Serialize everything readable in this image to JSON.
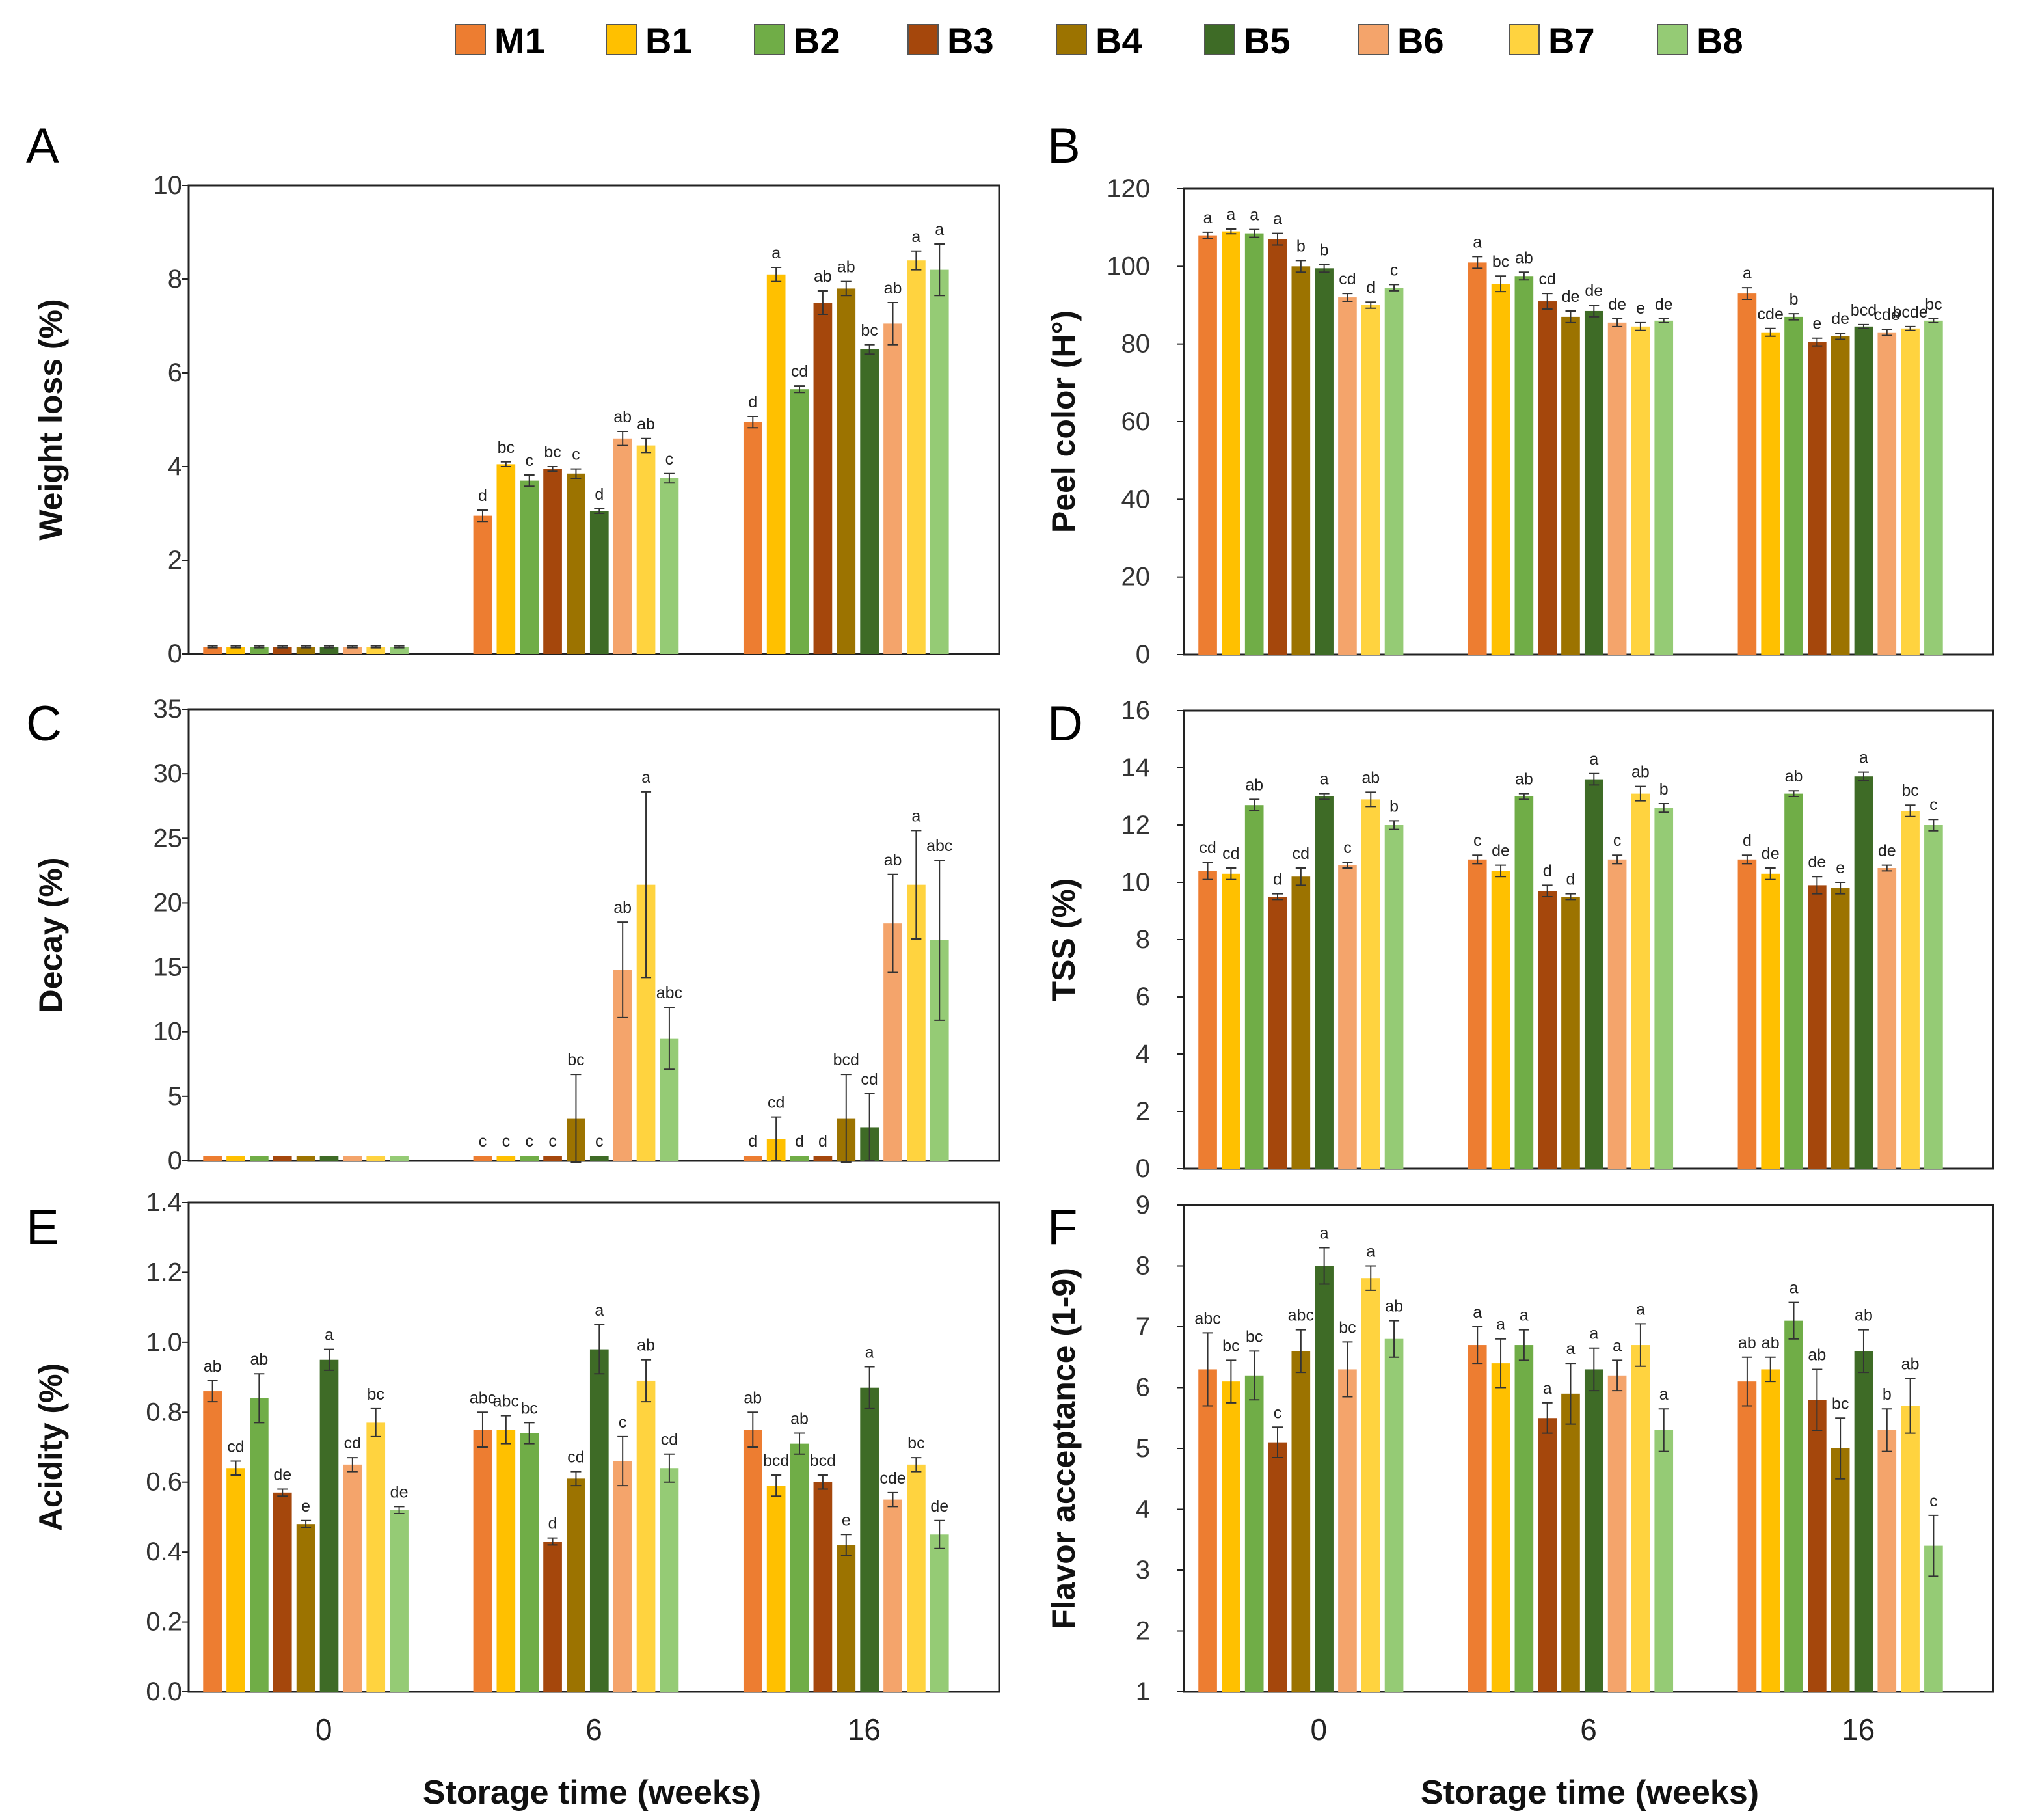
{
  "legend": {
    "position": "top",
    "items": [
      {
        "name": "M1",
        "color": "#ED7D31"
      },
      {
        "name": "B1",
        "color": "#FFC000"
      },
      {
        "name": "B2",
        "color": "#70AD47"
      },
      {
        "name": "B3",
        "color": "#A5470C"
      },
      {
        "name": "B4",
        "color": "#9C7300"
      },
      {
        "name": "B5",
        "color": "#3E6B26"
      },
      {
        "name": "B6",
        "color": "#F4A46B"
      },
      {
        "name": "B7",
        "color": "#FFD33F"
      },
      {
        "name": "B8",
        "color": "#95CB75"
      }
    ]
  },
  "xlabel_bottom": "Storage time (weeks)",
  "chart_data": [
    {
      "panel": "A",
      "type": "bar",
      "ylabel": "Weight loss (%)",
      "ylim": [
        0,
        10
      ],
      "yticks": [
        "0",
        "2",
        "4",
        "6",
        "8",
        "10"
      ],
      "categories": [
        "",
        "",
        ""
      ],
      "grid": false,
      "series": [
        {
          "name": "M1",
          "values": [
            0.15,
            2.95,
            4.95
          ],
          "errors": [
            0.02,
            0.12,
            0.12
          ],
          "letters": [
            "",
            "d",
            "d"
          ]
        },
        {
          "name": "B1",
          "values": [
            0.15,
            4.05,
            8.1
          ],
          "errors": [
            0.02,
            0.05,
            0.15
          ],
          "letters": [
            "",
            "bc",
            "a"
          ]
        },
        {
          "name": "B2",
          "values": [
            0.15,
            3.7,
            5.65
          ],
          "errors": [
            0.02,
            0.12,
            0.07
          ],
          "letters": [
            "",
            "c",
            "cd"
          ]
        },
        {
          "name": "B3",
          "values": [
            0.15,
            3.95,
            7.5
          ],
          "errors": [
            0.02,
            0.05,
            0.25
          ],
          "letters": [
            "",
            "bc",
            "ab"
          ]
        },
        {
          "name": "B4",
          "values": [
            0.15,
            3.85,
            7.8
          ],
          "errors": [
            0.02,
            0.1,
            0.15
          ],
          "letters": [
            "",
            "c",
            "ab"
          ]
        },
        {
          "name": "B5",
          "values": [
            0.15,
            3.05,
            6.5
          ],
          "errors": [
            0.02,
            0.05,
            0.1
          ],
          "letters": [
            "",
            "d",
            "bc"
          ]
        },
        {
          "name": "B6",
          "values": [
            0.15,
            4.6,
            7.05
          ],
          "errors": [
            0.02,
            0.15,
            0.45
          ],
          "letters": [
            "",
            "ab",
            "ab"
          ]
        },
        {
          "name": "B7",
          "values": [
            0.15,
            4.45,
            8.4
          ],
          "errors": [
            0.02,
            0.15,
            0.2
          ],
          "letters": [
            "",
            "ab",
            "a"
          ]
        },
        {
          "name": "B8",
          "values": [
            0.15,
            3.75,
            8.2
          ],
          "errors": [
            0.02,
            0.1,
            0.55
          ],
          "letters": [
            "",
            "c",
            "a"
          ]
        }
      ]
    },
    {
      "panel": "B",
      "type": "bar",
      "ylabel": "Peel color (H°)",
      "ylim": [
        0,
        120
      ],
      "yticks": [
        "0",
        "20",
        "40",
        "60",
        "80",
        "100",
        "120"
      ],
      "categories": [
        "",
        "",
        ""
      ],
      "grid": false,
      "series": [
        {
          "name": "M1",
          "values": [
            108,
            101,
            93
          ],
          "errors": [
            0.8,
            1.5,
            1.5
          ],
          "letters": [
            "a",
            "a",
            "a"
          ]
        },
        {
          "name": "B1",
          "values": [
            109,
            95.5,
            83
          ],
          "errors": [
            0.6,
            2.0,
            1.0
          ],
          "letters": [
            "a",
            "bc",
            "cde"
          ]
        },
        {
          "name": "B2",
          "values": [
            108.5,
            97.5,
            87
          ],
          "errors": [
            1.0,
            1.0,
            0.8
          ],
          "letters": [
            "a",
            "ab",
            "b"
          ]
        },
        {
          "name": "B3",
          "values": [
            107,
            91,
            80.5
          ],
          "errors": [
            1.5,
            2.0,
            1.0
          ],
          "letters": [
            "a",
            "cd",
            "e"
          ]
        },
        {
          "name": "B4",
          "values": [
            100,
            87,
            82
          ],
          "errors": [
            1.5,
            1.5,
            0.8
          ],
          "letters": [
            "b",
            "de",
            "de"
          ]
        },
        {
          "name": "B5",
          "values": [
            99.5,
            88.5,
            84.5
          ],
          "errors": [
            1.0,
            1.5,
            0.5
          ],
          "letters": [
            "b",
            "de",
            "bcd"
          ]
        },
        {
          "name": "B6",
          "values": [
            92,
            85.5,
            83
          ],
          "errors": [
            1.0,
            1.0,
            0.8
          ],
          "letters": [
            "cd",
            "de",
            "cde"
          ]
        },
        {
          "name": "B7",
          "values": [
            90,
            84.5,
            84
          ],
          "errors": [
            0.8,
            1.0,
            0.5
          ],
          "letters": [
            "d",
            "e",
            "bcde"
          ]
        },
        {
          "name": "B8",
          "values": [
            94.5,
            86,
            86
          ],
          "errors": [
            0.8,
            0.5,
            0.5
          ],
          "letters": [
            "c",
            "de",
            "bc"
          ]
        }
      ]
    },
    {
      "panel": "C",
      "type": "bar",
      "ylabel": "Decay (%)",
      "ylim": [
        0,
        35
      ],
      "yticks": [
        "0",
        "5",
        "10",
        "15",
        "20",
        "25",
        "30",
        "35"
      ],
      "categories": [
        "",
        "",
        ""
      ],
      "grid": false,
      "series": [
        {
          "name": "M1",
          "values": [
            0.4,
            0.4,
            0.4
          ],
          "errors": [
            0,
            0,
            0
          ],
          "letters": [
            "",
            "c",
            "d"
          ]
        },
        {
          "name": "B1",
          "values": [
            0.4,
            0.4,
            1.7
          ],
          "errors": [
            0,
            0,
            1.7
          ],
          "letters": [
            "",
            "c",
            "cd"
          ]
        },
        {
          "name": "B2",
          "values": [
            0.4,
            0.4,
            0.4
          ],
          "errors": [
            0,
            0,
            0
          ],
          "letters": [
            "",
            "c",
            "d"
          ]
        },
        {
          "name": "B3",
          "values": [
            0.4,
            0.4,
            0.4
          ],
          "errors": [
            0,
            0,
            0
          ],
          "letters": [
            "",
            "c",
            "d"
          ]
        },
        {
          "name": "B4",
          "values": [
            0.4,
            3.3,
            3.3
          ],
          "errors": [
            0,
            3.4,
            3.4
          ],
          "letters": [
            "",
            "bc",
            "bcd"
          ]
        },
        {
          "name": "B5",
          "values": [
            0.4,
            0.4,
            2.6
          ],
          "errors": [
            0,
            0,
            2.6
          ],
          "letters": [
            "",
            "c",
            "cd"
          ]
        },
        {
          "name": "B6",
          "values": [
            0.4,
            14.8,
            18.4
          ],
          "errors": [
            0,
            3.7,
            3.8
          ],
          "letters": [
            "",
            "ab",
            "ab"
          ]
        },
        {
          "name": "B7",
          "values": [
            0.4,
            21.4,
            21.4
          ],
          "errors": [
            0,
            7.2,
            4.2
          ],
          "letters": [
            "",
            "a",
            "a"
          ]
        },
        {
          "name": "B8",
          "values": [
            0.4,
            9.5,
            17.1
          ],
          "errors": [
            0,
            2.4,
            6.2
          ],
          "letters": [
            "",
            "abc",
            "abc"
          ]
        }
      ]
    },
    {
      "panel": "D",
      "type": "bar",
      "ylabel": "TSS (%)",
      "ylim": [
        0,
        16
      ],
      "yticks": [
        "0",
        "2",
        "4",
        "6",
        "8",
        "10",
        "12",
        "14",
        "16"
      ],
      "categories": [
        "",
        "",
        ""
      ],
      "grid": false,
      "series": [
        {
          "name": "M1",
          "values": [
            10.4,
            10.8,
            10.8
          ],
          "errors": [
            0.3,
            0.15,
            0.15
          ],
          "letters": [
            "cd",
            "c",
            "d"
          ]
        },
        {
          "name": "B1",
          "values": [
            10.3,
            10.4,
            10.3
          ],
          "errors": [
            0.2,
            0.2,
            0.2
          ],
          "letters": [
            "cd",
            "de",
            "de"
          ]
        },
        {
          "name": "B2",
          "values": [
            12.7,
            13.0,
            13.1
          ],
          "errors": [
            0.2,
            0.1,
            0.1
          ],
          "letters": [
            "ab",
            "ab",
            "ab"
          ]
        },
        {
          "name": "B3",
          "values": [
            9.5,
            9.7,
            9.9
          ],
          "errors": [
            0.1,
            0.2,
            0.3
          ],
          "letters": [
            "d",
            "d",
            "de"
          ]
        },
        {
          "name": "B4",
          "values": [
            10.2,
            9.5,
            9.8
          ],
          "errors": [
            0.3,
            0.1,
            0.2
          ],
          "letters": [
            "cd",
            "d",
            "e"
          ]
        },
        {
          "name": "B5",
          "values": [
            13.0,
            13.6,
            13.7
          ],
          "errors": [
            0.1,
            0.2,
            0.15
          ],
          "letters": [
            "a",
            "a",
            "a"
          ]
        },
        {
          "name": "B6",
          "values": [
            10.6,
            10.8,
            10.5
          ],
          "errors": [
            0.1,
            0.15,
            0.1
          ],
          "letters": [
            "c",
            "c",
            "de"
          ]
        },
        {
          "name": "B7",
          "values": [
            12.9,
            13.1,
            12.5
          ],
          "errors": [
            0.25,
            0.25,
            0.2
          ],
          "letters": [
            "ab",
            "ab",
            "bc"
          ]
        },
        {
          "name": "B8",
          "values": [
            12.0,
            12.6,
            12.0
          ],
          "errors": [
            0.15,
            0.15,
            0.2
          ],
          "letters": [
            "b",
            "b",
            "c"
          ]
        }
      ]
    },
    {
      "panel": "E",
      "type": "bar",
      "ylabel": "Acidity (%)",
      "ylim": [
        0,
        1.4
      ],
      "yticks": [
        "0.0",
        "0.2",
        "0.4",
        "0.6",
        "0.8",
        "1.0",
        "1.2",
        "1.4"
      ],
      "categories": [
        "0",
        "6",
        "16"
      ],
      "xlabel": "Storage time (weeks)",
      "grid": false,
      "series": [
        {
          "name": "M1",
          "values": [
            0.86,
            0.75,
            0.75
          ],
          "errors": [
            0.03,
            0.05,
            0.05
          ],
          "letters": [
            "ab",
            "abc",
            "ab"
          ]
        },
        {
          "name": "B1",
          "values": [
            0.64,
            0.75,
            0.59
          ],
          "errors": [
            0.02,
            0.04,
            0.03
          ],
          "letters": [
            "cd",
            "abc",
            "bcd"
          ]
        },
        {
          "name": "B2",
          "values": [
            0.84,
            0.74,
            0.71
          ],
          "errors": [
            0.07,
            0.03,
            0.03
          ],
          "letters": [
            "ab",
            "bc",
            "ab"
          ]
        },
        {
          "name": "B3",
          "values": [
            0.57,
            0.43,
            0.6
          ],
          "errors": [
            0.01,
            0.01,
            0.02
          ],
          "letters": [
            "de",
            "d",
            "bcd"
          ]
        },
        {
          "name": "B4",
          "values": [
            0.48,
            0.61,
            0.42
          ],
          "errors": [
            0.01,
            0.02,
            0.03
          ],
          "letters": [
            "e",
            "cd",
            "e"
          ]
        },
        {
          "name": "B5",
          "values": [
            0.95,
            0.98,
            0.87
          ],
          "errors": [
            0.03,
            0.07,
            0.06
          ],
          "letters": [
            "a",
            "a",
            "a"
          ]
        },
        {
          "name": "B6",
          "values": [
            0.65,
            0.66,
            0.55
          ],
          "errors": [
            0.02,
            0.07,
            0.02
          ],
          "letters": [
            "cd",
            "c",
            "cde"
          ]
        },
        {
          "name": "B7",
          "values": [
            0.77,
            0.89,
            0.65
          ],
          "errors": [
            0.04,
            0.06,
            0.02
          ],
          "letters": [
            "bc",
            "ab",
            "bc"
          ]
        },
        {
          "name": "B8",
          "values": [
            0.52,
            0.64,
            0.45
          ],
          "errors": [
            0.01,
            0.04,
            0.04
          ],
          "letters": [
            "de",
            "cd",
            "de"
          ]
        }
      ]
    },
    {
      "panel": "F",
      "type": "bar",
      "ylabel": "Flavor acceptance  (1-9)",
      "ylim": [
        1,
        9
      ],
      "yticks": [
        "1",
        "2",
        "3",
        "4",
        "5",
        "6",
        "7",
        "8",
        "9"
      ],
      "categories": [
        "0",
        "6",
        "16"
      ],
      "xlabel": "Storage time (weeks)",
      "grid": false,
      "series": [
        {
          "name": "M1",
          "values": [
            6.3,
            6.7,
            6.1
          ],
          "errors": [
            0.6,
            0.3,
            0.4
          ],
          "letters": [
            "abc",
            "a",
            "ab"
          ]
        },
        {
          "name": "B1",
          "values": [
            6.1,
            6.4,
            6.3
          ],
          "errors": [
            0.35,
            0.4,
            0.2
          ],
          "letters": [
            "bc",
            "a",
            "ab"
          ]
        },
        {
          "name": "B2",
          "values": [
            6.2,
            6.7,
            7.1
          ],
          "errors": [
            0.4,
            0.25,
            0.3
          ],
          "letters": [
            "bc",
            "a",
            "a"
          ]
        },
        {
          "name": "B3",
          "values": [
            5.1,
            5.5,
            5.8
          ],
          "errors": [
            0.25,
            0.25,
            0.5
          ],
          "letters": [
            "c",
            "a",
            "ab"
          ]
        },
        {
          "name": "B4",
          "values": [
            6.6,
            5.9,
            5.0
          ],
          "errors": [
            0.35,
            0.5,
            0.5
          ],
          "letters": [
            "abc",
            "a",
            "bc"
          ]
        },
        {
          "name": "B5",
          "values": [
            8.0,
            6.3,
            6.6
          ],
          "errors": [
            0.3,
            0.35,
            0.35
          ],
          "letters": [
            "a",
            "a",
            "ab"
          ]
        },
        {
          "name": "B6",
          "values": [
            6.3,
            6.2,
            5.3
          ],
          "errors": [
            0.45,
            0.25,
            0.35
          ],
          "letters": [
            "bc",
            "a",
            "b"
          ]
        },
        {
          "name": "B7",
          "values": [
            7.8,
            6.7,
            5.7
          ],
          "errors": [
            0.2,
            0.35,
            0.45
          ],
          "letters": [
            "a",
            "a",
            "ab"
          ]
        },
        {
          "name": "B8",
          "values": [
            6.8,
            5.3,
            3.4
          ],
          "errors": [
            0.3,
            0.35,
            0.5
          ],
          "letters": [
            "ab",
            "a",
            "c"
          ]
        }
      ]
    }
  ]
}
